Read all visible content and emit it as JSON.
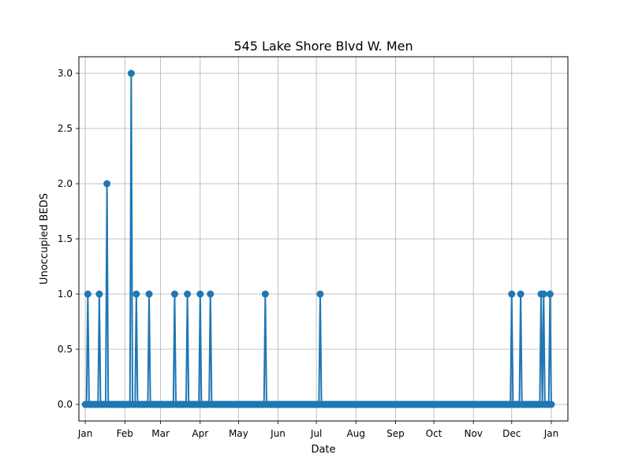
{
  "chart_data": {
    "type": "line",
    "title": "545 Lake Shore Blvd W. Men",
    "xlabel": "Date",
    "ylabel": "Unoccupied BEDS",
    "xlim": [
      "2020-12-27",
      "2022-01-14"
    ],
    "ylim": [
      -0.15,
      3.15
    ],
    "x_ticks": [
      {
        "date": "2021-01-01",
        "label": "Jan"
      },
      {
        "date": "2021-02-01",
        "label": "Feb"
      },
      {
        "date": "2021-03-01",
        "label": "Mar"
      },
      {
        "date": "2021-04-01",
        "label": "Apr"
      },
      {
        "date": "2021-05-01",
        "label": "May"
      },
      {
        "date": "2021-06-01",
        "label": "Jun"
      },
      {
        "date": "2021-07-01",
        "label": "Jul"
      },
      {
        "date": "2021-08-01",
        "label": "Aug"
      },
      {
        "date": "2021-09-01",
        "label": "Sep"
      },
      {
        "date": "2021-10-01",
        "label": "Oct"
      },
      {
        "date": "2021-11-01",
        "label": "Nov"
      },
      {
        "date": "2021-12-01",
        "label": "Dec"
      },
      {
        "date": "2022-01-01",
        "label": "Jan"
      }
    ],
    "y_ticks": [
      {
        "value": 0.0,
        "label": "0.0"
      },
      {
        "value": 0.5,
        "label": "0.5"
      },
      {
        "value": 1.0,
        "label": "1.0"
      },
      {
        "value": 1.5,
        "label": "1.5"
      },
      {
        "value": 2.0,
        "label": "2.0"
      },
      {
        "value": 2.5,
        "label": "2.5"
      },
      {
        "value": 3.0,
        "label": "3.0"
      }
    ],
    "grid": true,
    "series_color": "#1f77b4",
    "start_date": "2021-01-01",
    "end_date": "2022-01-01",
    "baseline_value": 0,
    "nonzero_points": [
      {
        "date": "2021-01-03",
        "value": 1
      },
      {
        "date": "2021-01-12",
        "value": 1
      },
      {
        "date": "2021-01-18",
        "value": 2
      },
      {
        "date": "2021-02-06",
        "value": 3
      },
      {
        "date": "2021-02-10",
        "value": 1
      },
      {
        "date": "2021-02-20",
        "value": 1
      },
      {
        "date": "2021-03-12",
        "value": 1
      },
      {
        "date": "2021-03-22",
        "value": 1
      },
      {
        "date": "2021-04-01",
        "value": 1
      },
      {
        "date": "2021-04-09",
        "value": 1
      },
      {
        "date": "2021-05-22",
        "value": 1
      },
      {
        "date": "2021-07-04",
        "value": 1
      },
      {
        "date": "2021-12-01",
        "value": 1
      },
      {
        "date": "2021-12-08",
        "value": 1
      },
      {
        "date": "2021-12-24",
        "value": 1
      },
      {
        "date": "2021-12-26",
        "value": 1
      },
      {
        "date": "2021-12-31",
        "value": 1
      }
    ]
  }
}
